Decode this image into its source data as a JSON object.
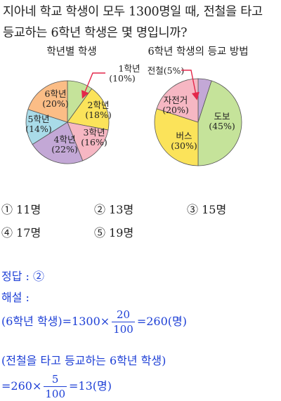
{
  "question": {
    "line1": "지아네 학교 학생이 모두 1300명일 때, 전철을 타고",
    "line2": "등교하는 6학년 학생은 몇 명입니까?"
  },
  "chart_data": [
    {
      "type": "pie",
      "title": "학년별 학생",
      "slices": [
        {
          "label": "1학년",
          "value": 10,
          "display": "(10%)",
          "color": "#c5e39a"
        },
        {
          "label": "2학년",
          "value": 18,
          "display": "(18%)",
          "color": "#fbe35a"
        },
        {
          "label": "3학년",
          "value": 16,
          "display": "(16%)",
          "color": "#f6b7c3"
        },
        {
          "label": "4학년",
          "value": 22,
          "display": "(22%)",
          "color": "#c3a8d6"
        },
        {
          "label": "5학년",
          "value": 14,
          "display": "(14%)",
          "color": "#a9dbe8"
        },
        {
          "label": "6학년",
          "value": 20,
          "display": "(20%)",
          "color": "#fbbd86"
        }
      ]
    },
    {
      "type": "pie",
      "title": "6학년 학생의 등교 방법",
      "slices": [
        {
          "label": "전철",
          "value": 5,
          "display": "(5%)",
          "color": "#c3a8d6"
        },
        {
          "label": "도보",
          "value": 45,
          "display": "(45%)",
          "color": "#c5e39a"
        },
        {
          "label": "버스",
          "value": 30,
          "display": "(30%)",
          "color": "#fbe35a"
        },
        {
          "label": "자전거",
          "value": 20,
          "display": "(20%)",
          "color": "#f6b7c3"
        }
      ]
    }
  ],
  "choices": [
    {
      "num": "①",
      "text": "11명"
    },
    {
      "num": "②",
      "text": "13명"
    },
    {
      "num": "③",
      "text": "15명"
    },
    {
      "num": "④",
      "text": "17명"
    },
    {
      "num": "⑤",
      "text": "19명"
    }
  ],
  "solution": {
    "answer_label": "정답 :",
    "answer_value": "②",
    "explain_label": "해설 :",
    "line1_lhs": "(6학년 학생)=1300×",
    "line1_num": "20",
    "line1_den": "100",
    "line1_rhs": "=260(명)",
    "line2": "(전철을 타고 등교하는 6학년 학생)",
    "line3_lhs": "=260×",
    "line3_num": "5",
    "line3_den": "100",
    "line3_rhs": "=13(명)"
  }
}
